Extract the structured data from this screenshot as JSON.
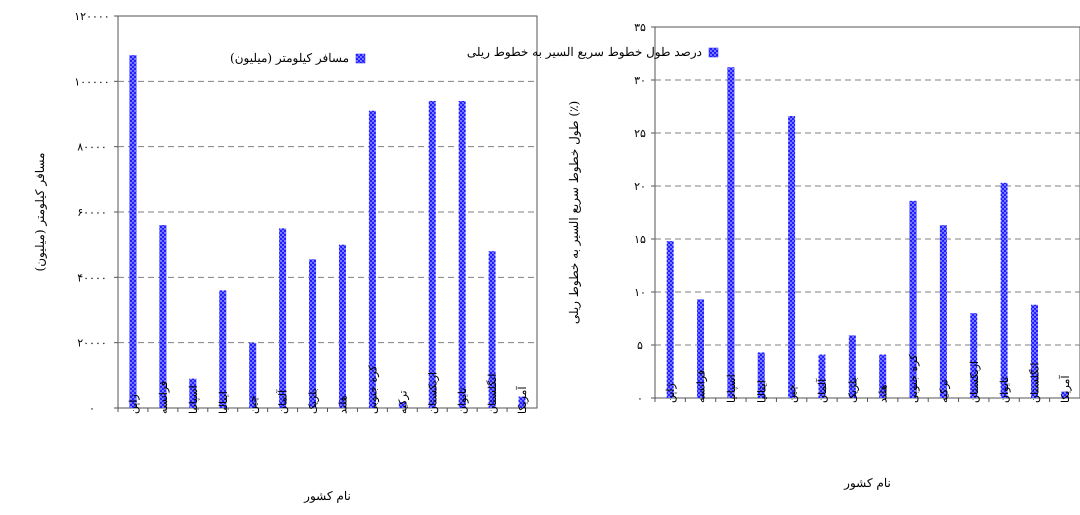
{
  "chart_data": [
    {
      "type": "bar",
      "title": "",
      "legend": "مسافر کیلومتر (میلیون)",
      "legend_position": "top-right",
      "xlabel": "نام کشور",
      "ylabel": "مسافر کیلومتر (میلیون)",
      "ylim": [
        0,
        120000
      ],
      "grid": true,
      "bar_color": "#1f1fff",
      "categories": [
        "ژاپن",
        "فرانسه",
        "اسپانیا",
        "ایتالیا",
        "چین",
        "آلمان",
        "بلژیک",
        "هلند",
        "کره جنوبی",
        "ترکیه",
        "ازبکستان",
        "تایوان",
        "انگلستان",
        "آمریکا"
      ],
      "values": [
        108000,
        56000,
        9000,
        36000,
        20000,
        55000,
        45500,
        50000,
        91000,
        1800,
        94000,
        94000,
        48000,
        3500
      ],
      "yticks": [
        0,
        20000,
        40000,
        60000,
        80000,
        100000,
        120000
      ],
      "yticklabels": [
        "۰",
        "۲۰۰۰۰",
        "۴۰۰۰۰",
        "۶۰۰۰۰",
        "۸۰۰۰۰",
        "۱۰۰۰۰۰",
        "۱۲۰۰۰۰"
      ]
    },
    {
      "type": "bar",
      "title": "",
      "legend": "درصد طول خطوط سریع السیر به خطوط ریلی",
      "legend_position": "top-right",
      "xlabel": "نام کشور",
      "ylabel": "طول خطوط سریع السیر به خطوط ریلی (٪)",
      "ylim": [
        0,
        35
      ],
      "grid": true,
      "bar_color": "#1f1fff",
      "categories": [
        "ژاپن",
        "فرانسه",
        "اسپانیا",
        "ایتالیا",
        "چین",
        "آلمان",
        "بلژیک",
        "هلند",
        "کره جنوبی",
        "ترکیه",
        "ازبکستان",
        "تایوان",
        "انگلستان",
        "آمریکا"
      ],
      "values": [
        14.8,
        9.3,
        31.2,
        4.3,
        26.6,
        4.1,
        5.9,
        4.1,
        18.6,
        16.3,
        8.0,
        20.3,
        8.8,
        0.6
      ],
      "yticks": [
        0,
        5,
        10,
        15,
        20,
        25,
        30,
        35
      ],
      "yticklabels": [
        "۰",
        "۵",
        "۱۰",
        "۱۵",
        "۲۰",
        "۲۵",
        "۳۰",
        "۳۵"
      ]
    }
  ]
}
